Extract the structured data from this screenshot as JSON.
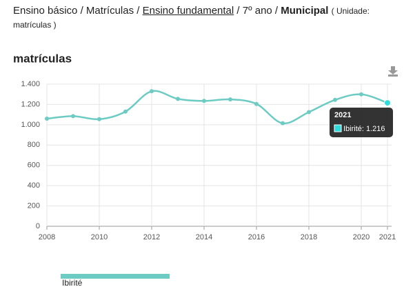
{
  "header": {
    "crumbs": [
      "Ensino básico",
      "Matrículas",
      "Ensino fundamental",
      "7º ano",
      "Municipal"
    ],
    "separator": "/",
    "unit": "( Unidade: matrículas )"
  },
  "chart_data": {
    "type": "line",
    "title": "matrículas",
    "x": [
      2008,
      2009,
      2010,
      2011,
      2012,
      2013,
      2014,
      2015,
      2016,
      2017,
      2018,
      2019,
      2020,
      2021
    ],
    "series": [
      {
        "name": "Ibirité",
        "color": "#6ccbc3",
        "values": [
          1060,
          1085,
          1055,
          1130,
          1330,
          1255,
          1235,
          1250,
          1205,
          1015,
          1125,
          1245,
          1300,
          1216
        ],
        "value_labels": [
          null,
          null,
          null,
          null,
          null,
          null,
          null,
          null,
          null,
          null,
          null,
          null,
          null,
          "1.216"
        ]
      }
    ],
    "xlim": [
      2008,
      2021
    ],
    "xticks": [
      2008,
      2010,
      2012,
      2014,
      2016,
      2018,
      2020,
      2021
    ],
    "ylim": [
      0,
      1400
    ],
    "yticks": [
      0,
      200,
      400,
      600,
      800,
      {
        "value": 1000,
        "label": "1.000"
      },
      {
        "value": 1200,
        "label": "1.200"
      },
      {
        "value": 1400,
        "label": "1.400"
      }
    ],
    "grid": true,
    "tooltip": {
      "title": "2021",
      "text": "Ibirité: 1.216"
    }
  }
}
